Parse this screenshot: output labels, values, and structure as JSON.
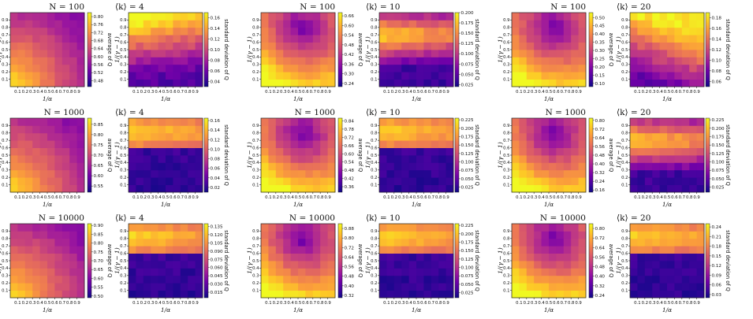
{
  "chart_data": {
    "type": "heatmap",
    "x_label": "1/α",
    "y_label": "1/(γ − 1)",
    "x_ticks": [
      "0.1",
      "0.2",
      "0.3",
      "0.4",
      "0.5",
      "0.6",
      "0.7",
      "0.8",
      "0.9"
    ],
    "y_ticks": [
      "0.1",
      "0.2",
      "0.3",
      "0.4",
      "0.5",
      "0.6",
      "0.7",
      "0.8",
      "0.9"
    ],
    "colormap": [
      "#0d0887",
      "#46039f",
      "#7201a8",
      "#9c179e",
      "#bd3786",
      "#d8576b",
      "#ed7953",
      "#fb9f3a",
      "#fdca26",
      "#f0f921"
    ],
    "columns": [
      {
        "k_title": "⟨k⟩ = 4",
        "rows": [
          {
            "n_title": "N = 100",
            "mean": {
              "label": "average of Q",
              "ticks": [
                "0.48",
                "0.52",
                "0.56",
                "0.60",
                "0.64",
                "0.68",
                "0.72",
                "0.76",
                "0.80"
              ],
              "range": [
                0.45,
                0.82
              ],
              "pattern": "mean"
            },
            "std": {
              "label": "standard deviation of Q",
              "ticks": [
                "0.04",
                "0.06",
                "0.08",
                "0.10",
                "0.12",
                "0.14",
                "0.16"
              ],
              "range": [
                0.03,
                0.17
              ],
              "pattern": "std_small"
            }
          },
          {
            "n_title": "N = 1000",
            "mean": {
              "label": "average of Q",
              "ticks": [
                "0.55",
                "0.60",
                "0.65",
                "0.70",
                "0.75",
                "0.80",
                "0.85"
              ],
              "range": [
                0.52,
                0.88
              ],
              "pattern": "mean"
            },
            "std": {
              "label": "standard deviation of Q",
              "ticks": [
                "0.02",
                "0.04",
                "0.06",
                "0.08",
                "0.10",
                "0.12",
                "0.14",
                "0.16"
              ],
              "range": [
                0.01,
                0.165
              ],
              "pattern": "std_top"
            }
          },
          {
            "n_title": "N = 10000",
            "mean": {
              "label": "average of Q",
              "ticks": [
                "0.50",
                "0.55",
                "0.60",
                "0.65",
                "0.70",
                "0.75",
                "0.80",
                "0.85",
                "0.90"
              ],
              "range": [
                0.49,
                0.91
              ],
              "pattern": "mean"
            },
            "std": {
              "label": "standard deviation of Q",
              "ticks": [
                "0.015",
                "0.030",
                "0.045",
                "0.060",
                "0.075",
                "0.090",
                "0.105",
                "0.120",
                "0.135"
              ],
              "range": [
                0.005,
                0.14
              ],
              "pattern": "std_top"
            }
          }
        ]
      },
      {
        "k_title": "⟨k⟩ = 10",
        "rows": [
          {
            "n_title": "N = 100",
            "mean": {
              "label": "average of Q",
              "ticks": [
                "0.24",
                "0.30",
                "0.36",
                "0.42",
                "0.48",
                "0.54",
                "0.60",
                "0.66"
              ],
              "range": [
                0.22,
                0.68
              ],
              "pattern": "mean_dip"
            },
            "std": {
              "label": "standard deviation of Q",
              "ticks": [
                "0.025",
                "0.050",
                "0.075",
                "0.100",
                "0.125",
                "0.150",
                "0.175",
                "0.200"
              ],
              "range": [
                0.02,
                0.2
              ],
              "pattern": "std_mid"
            }
          },
          {
            "n_title": "N = 1000",
            "mean": {
              "label": "average of Q",
              "ticks": [
                "0.36",
                "0.42",
                "0.48",
                "0.54",
                "0.60",
                "0.66",
                "0.72",
                "0.78",
                "0.84"
              ],
              "range": [
                0.32,
                0.86
              ],
              "pattern": "mean_dip"
            },
            "std": {
              "label": "standard deviation of Q",
              "ticks": [
                "0.025",
                "0.050",
                "0.075",
                "0.100",
                "0.125",
                "0.150",
                "0.175",
                "0.200",
                "0.225"
              ],
              "range": [
                0.01,
                0.23
              ],
              "pattern": "std_top"
            }
          },
          {
            "n_title": "N = 10000",
            "mean": {
              "label": "average of Q",
              "ticks": [
                "0.32",
                "0.40",
                "0.48",
                "0.56",
                "0.64",
                "0.72",
                "0.80",
                "0.88"
              ],
              "range": [
                0.3,
                0.92
              ],
              "pattern": "mean_dip"
            },
            "std": {
              "label": "standard deviation of Q",
              "ticks": [
                "0.025",
                "0.050",
                "0.075",
                "0.100",
                "0.125",
                "0.150",
                "0.175",
                "0.200",
                "0.225"
              ],
              "range": [
                0.01,
                0.23
              ],
              "pattern": "std_top"
            }
          }
        ]
      },
      {
        "k_title": "⟨k⟩ = 20",
        "rows": [
          {
            "n_title": "N = 100",
            "mean": {
              "label": "average of Q",
              "ticks": [
                "0.10",
                "0.15",
                "0.20",
                "0.25",
                "0.30",
                "0.35",
                "0.40",
                "0.45",
                "0.50"
              ],
              "range": [
                0.08,
                0.53
              ],
              "pattern": "mean_dip"
            },
            "std": {
              "label": "standard deviation of Q",
              "ticks": [
                "0.06",
                "0.08",
                "0.10",
                "0.12",
                "0.14",
                "0.16",
                "0.18"
              ],
              "range": [
                0.05,
                0.19
              ],
              "pattern": "std_broad"
            }
          },
          {
            "n_title": "N = 1000",
            "mean": {
              "label": "average of Q",
              "ticks": [
                "0.16",
                "0.24",
                "0.32",
                "0.40",
                "0.48",
                "0.56",
                "0.64",
                "0.72",
                "0.80"
              ],
              "range": [
                0.14,
                0.82
              ],
              "pattern": "mean_dip"
            },
            "std": {
              "label": "standard deviation of Q",
              "ticks": [
                "0.025",
                "0.050",
                "0.075",
                "0.100",
                "0.125",
                "0.150",
                "0.175",
                "0.200",
                "0.225"
              ],
              "range": [
                0.01,
                0.23
              ],
              "pattern": "std_mid"
            }
          },
          {
            "n_title": "N = 10000",
            "mean": {
              "label": "average of Q",
              "ticks": [
                "0.24",
                "0.32",
                "0.40",
                "0.48",
                "0.56",
                "0.64",
                "0.72",
                "0.80"
              ],
              "range": [
                0.22,
                0.84
              ],
              "pattern": "mean_dip"
            },
            "std": {
              "label": "standard deviation of Q",
              "ticks": [
                "0.03",
                "0.06",
                "0.09",
                "0.12",
                "0.15",
                "0.18",
                "0.21",
                "0.24"
              ],
              "range": [
                0.02,
                0.25
              ],
              "pattern": "std_top"
            }
          }
        ]
      }
    ]
  }
}
